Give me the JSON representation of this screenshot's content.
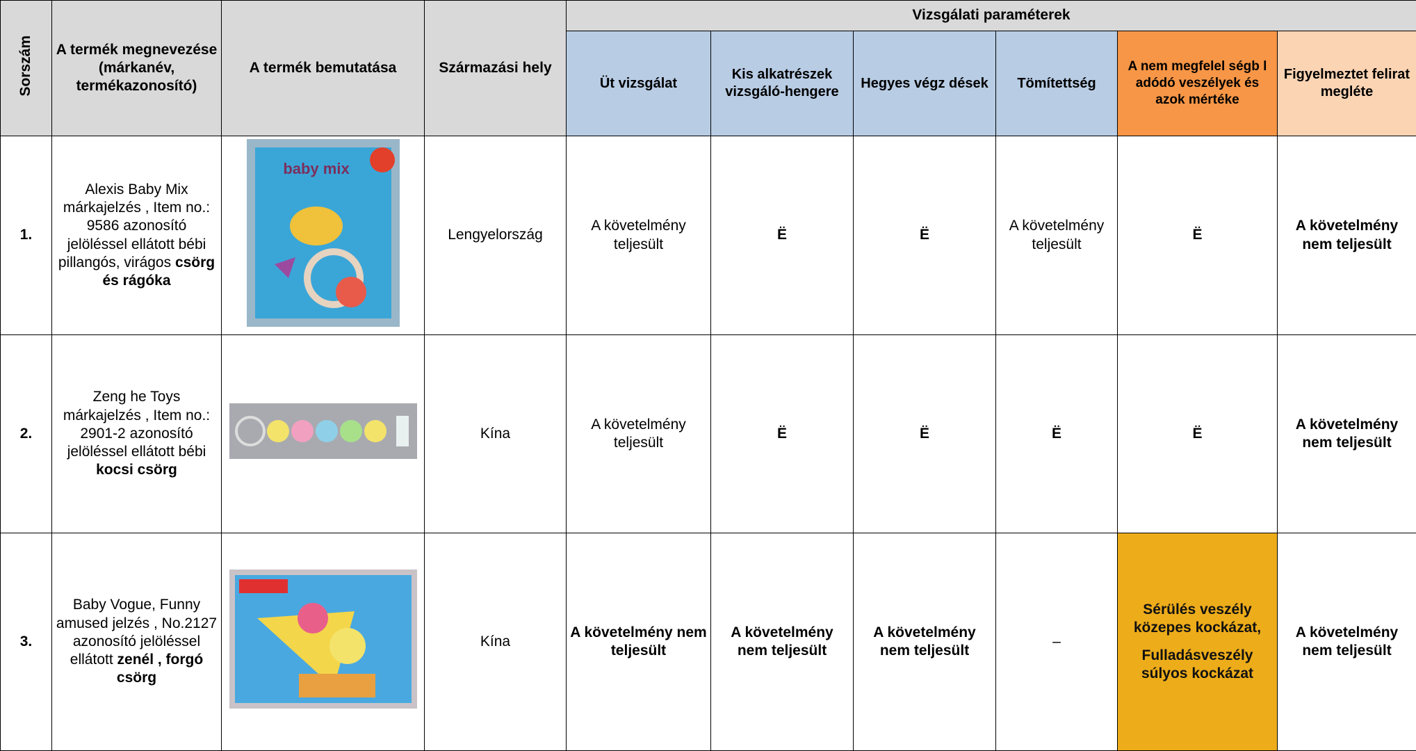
{
  "header": {
    "number": "Sorszám",
    "name": "A termék megnevezése (márkanév, termékazonosító)",
    "presentation": "A termék bemutatása",
    "origin": "Származási hely",
    "group": "Vizsgálati paraméterek",
    "params": [
      "Üt vizsgálat",
      "Kis alkatrészek vizsgáló-hengere",
      "Hegyes végz dések",
      "Tömítettség",
      "A nem megfelel ségb l adódó veszélyek és azok mértéke",
      "Figyelmeztet felirat megléte"
    ]
  },
  "rows": [
    {
      "number": "1.",
      "name": "Alexis Baby Mix márkajelzés , Item no.: 9586 azonosító jelöléssel ellátott bébi pillangós, virágos",
      "name_bold": "csörg és rágóka",
      "origin": "Lengyelország",
      "results": [
        "A követelmény teljesült",
        "Ë",
        "Ë",
        "A követelmény teljesült",
        "Ë",
        "A követelmény nem teljesült"
      ]
    },
    {
      "number": "2.",
      "name": "Zeng he Toys márkajelzés , Item no.: 2901-2 azonosító jelöléssel ellátott bébi",
      "name_bold": "kocsi csörg",
      "origin": "Kína",
      "results": [
        "A követelmény teljesült",
        "Ë",
        "Ë",
        "Ë",
        "Ë",
        "A követelmény nem teljesült"
      ]
    },
    {
      "number": "3.",
      "name": "Baby Vogue, Funny amused jelzés , No.2127 azonosító jelöléssel ellátott",
      "name_bold": "zenél , forgó csörg",
      "origin": "Kína",
      "results": [
        "A követelmény nem teljesült",
        "A követelmény nem teljesült",
        "A követelmény nem teljesült",
        "–",
        [
          "Sérülés veszély közepes kockázat,",
          "Fulladásveszély súlyos kockázat"
        ],
        "A követelmény nem teljesült"
      ]
    }
  ]
}
